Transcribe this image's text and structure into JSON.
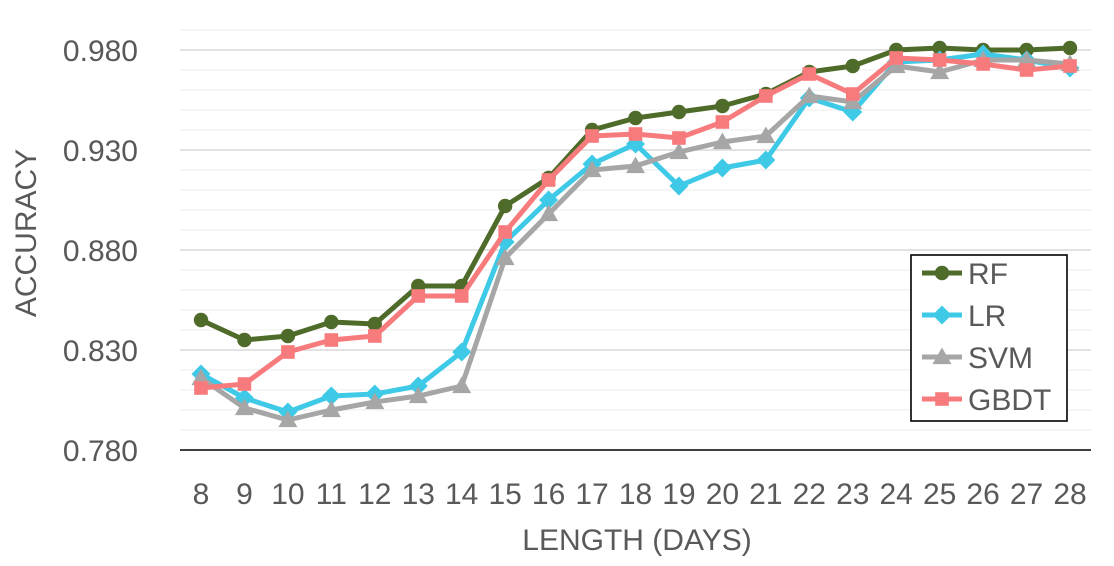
{
  "chart_data": {
    "type": "line",
    "xlabel": "LENGTH (DAYS)",
    "ylabel": "ACCURACY",
    "x": [
      "8",
      "9",
      "10",
      "11",
      "12",
      "13",
      "14",
      "15",
      "16",
      "17",
      "18",
      "19",
      "20",
      "21",
      "22",
      "23",
      "24",
      "25",
      "26",
      "27",
      "28"
    ],
    "ylim": [
      0.78,
      0.98
    ],
    "yticks": [
      "0.780",
      "0.830",
      "0.880",
      "0.930",
      "0.980"
    ],
    "grid": true,
    "legend_position": "bottom-right",
    "series": [
      {
        "name": "RF",
        "color": "#4f6b2a",
        "marker": "circle",
        "values": [
          0.845,
          0.835,
          0.837,
          0.844,
          0.843,
          0.862,
          0.862,
          0.902,
          0.916,
          0.94,
          0.946,
          0.949,
          0.952,
          0.958,
          0.969,
          0.972,
          0.98,
          0.981,
          0.98,
          0.98,
          0.981
        ]
      },
      {
        "name": "LR",
        "color": "#3ec9e6",
        "marker": "diamond",
        "values": [
          0.818,
          0.806,
          0.799,
          0.807,
          0.808,
          0.812,
          0.829,
          0.884,
          0.905,
          0.923,
          0.933,
          0.912,
          0.921,
          0.925,
          0.956,
          0.949,
          0.974,
          0.975,
          0.978,
          0.975,
          0.971
        ]
      },
      {
        "name": "SVM",
        "color": "#a6a6a6",
        "marker": "triangle",
        "values": [
          0.816,
          0.801,
          0.795,
          0.8,
          0.804,
          0.807,
          0.812,
          0.876,
          0.898,
          0.92,
          0.922,
          0.929,
          0.934,
          0.937,
          0.957,
          0.954,
          0.972,
          0.969,
          0.975,
          0.975,
          0.973
        ]
      },
      {
        "name": "GBDT",
        "color": "#f77b7d",
        "marker": "square",
        "values": [
          0.811,
          0.813,
          0.829,
          0.835,
          0.837,
          0.857,
          0.857,
          0.889,
          0.915,
          0.937,
          0.938,
          0.936,
          0.944,
          0.957,
          0.968,
          0.958,
          0.976,
          0.975,
          0.973,
          0.97,
          0.972
        ]
      }
    ]
  }
}
